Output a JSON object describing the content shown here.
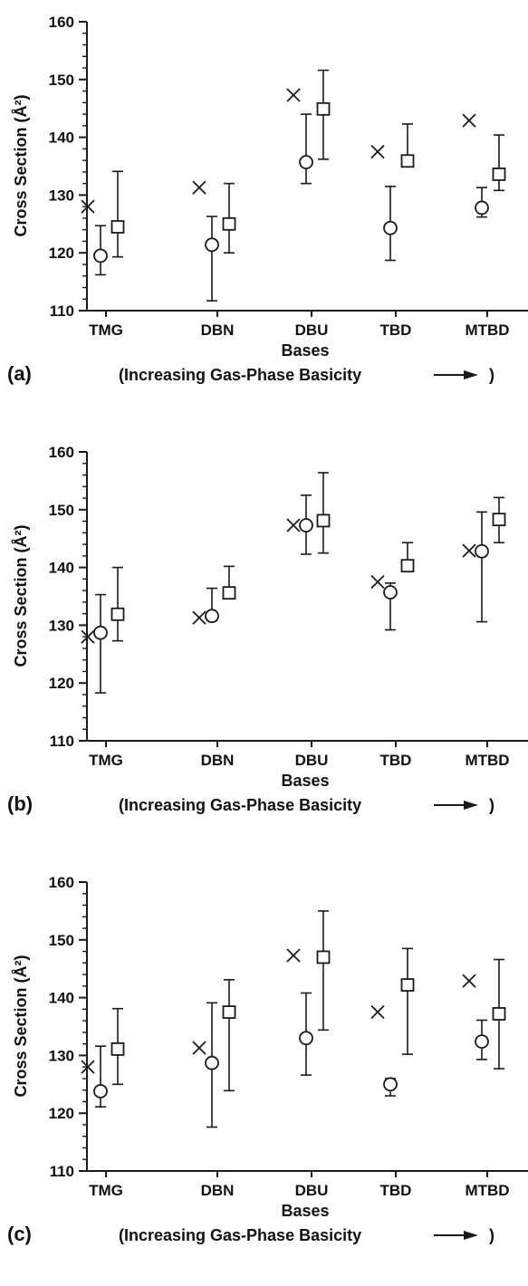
{
  "chart_data": [
    {
      "type": "scatter",
      "panel_label": "(a)",
      "xlabel": "Bases",
      "ylabel": "Cross Section (Å²)",
      "caption": "(Increasing Gas-Phase Basicity",
      "caption_end": ")",
      "categories": [
        "TMG",
        "DBN",
        "DBU",
        "TBD",
        "MTBD"
      ],
      "ylim": [
        110,
        160
      ],
      "yticks": [
        "110",
        "120",
        "130",
        "140",
        "150",
        "160"
      ],
      "series": [
        {
          "marker": "cross",
          "values": [
            128,
            131.3,
            147.3,
            137.5,
            142.9
          ]
        },
        {
          "marker": "circle",
          "values": [
            119.5,
            121.4,
            135.7,
            124.3,
            127.8
          ],
          "err_low": [
            116.2,
            111.7,
            132.0,
            118.7,
            126.2
          ],
          "err_high": [
            124.7,
            126.3,
            144.0,
            131.5,
            131.3
          ]
        },
        {
          "marker": "square",
          "values": [
            124.5,
            125.0,
            144.9,
            135.9,
            133.6
          ],
          "err_low": [
            119.3,
            120.0,
            136.2,
            135.0,
            130.8
          ],
          "err_high": [
            134.1,
            132.0,
            151.6,
            142.3,
            140.4
          ]
        }
      ]
    },
    {
      "type": "scatter",
      "panel_label": "(b)",
      "xlabel": "Bases",
      "ylabel": "Cross Section (Å²)",
      "caption": "(Increasing Gas-Phase Basicity",
      "caption_end": ")",
      "categories": [
        "TMG",
        "DBN",
        "DBU",
        "TBD",
        "MTBD"
      ],
      "ylim": [
        110,
        160
      ],
      "yticks": [
        "110",
        "120",
        "130",
        "140",
        "150",
        "160"
      ],
      "series": [
        {
          "marker": "cross",
          "values": [
            128,
            131.3,
            147.3,
            137.5,
            142.9
          ]
        },
        {
          "marker": "circle",
          "values": [
            128.7,
            131.6,
            147.3,
            135.7,
            142.8
          ],
          "err_low": [
            118.3,
            130.8,
            142.3,
            129.2,
            130.6
          ],
          "err_high": [
            135.3,
            136.4,
            152.5,
            137.3,
            149.6
          ]
        },
        {
          "marker": "square",
          "values": [
            131.9,
            135.6,
            148.1,
            140.3,
            148.3
          ],
          "err_low": [
            127.3,
            135.0,
            142.5,
            139.5,
            144.3
          ],
          "err_high": [
            140.0,
            140.2,
            156.4,
            144.3,
            152.1
          ]
        }
      ]
    },
    {
      "type": "scatter",
      "panel_label": "(c)",
      "xlabel": "Bases",
      "ylabel": "Cross Section (Å²)",
      "caption": "(Increasing Gas-Phase Basicity",
      "caption_end": ")",
      "categories": [
        "TMG",
        "DBN",
        "DBU",
        "TBD",
        "MTBD"
      ],
      "ylim": [
        110,
        160
      ],
      "yticks": [
        "110",
        "120",
        "130",
        "140",
        "150",
        "160"
      ],
      "series": [
        {
          "marker": "cross",
          "values": [
            128,
            131.3,
            147.3,
            137.5,
            142.9
          ]
        },
        {
          "marker": "circle",
          "values": [
            123.8,
            128.7,
            133.0,
            125.0,
            132.4
          ],
          "err_low": [
            121.1,
            117.6,
            126.6,
            123.0,
            129.3
          ],
          "err_high": [
            131.6,
            139.1,
            140.8,
            126.0,
            136.1
          ]
        },
        {
          "marker": "square",
          "values": [
            131.1,
            137.5,
            147.0,
            142.2,
            137.2
          ],
          "err_low": [
            125.0,
            123.9,
            134.4,
            130.2,
            127.7
          ],
          "err_high": [
            138.1,
            143.1,
            155.0,
            148.5,
            146.6
          ]
        }
      ]
    }
  ]
}
